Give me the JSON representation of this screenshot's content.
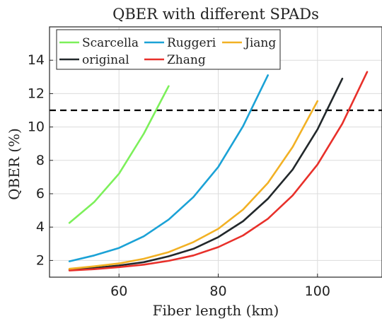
{
  "chart_data": {
    "type": "line",
    "title": "QBER with different SPADs",
    "xlabel": "Fiber length (km)",
    "ylabel": "QBER (%)",
    "xlim": [
      46,
      113
    ],
    "ylim": [
      1,
      16
    ],
    "xticks": [
      60,
      80,
      100
    ],
    "yticks": [
      2,
      4,
      6,
      8,
      10,
      12,
      14
    ],
    "grid": true,
    "legend_position": "top-left",
    "threshold": {
      "y": 11,
      "style": "dashed",
      "color": "#000000"
    },
    "series": [
      {
        "name": "Scarcella",
        "color": "#7cf05a",
        "x": [
          50,
          55,
          60,
          65,
          70
        ],
        "y": [
          4.25,
          5.5,
          7.2,
          9.6,
          12.45
        ]
      },
      {
        "name": "original",
        "color": "#22282b",
        "x": [
          50,
          55,
          60,
          65,
          70,
          75,
          80,
          85,
          90,
          95,
          100,
          105
        ],
        "y": [
          1.45,
          1.55,
          1.7,
          1.9,
          2.25,
          2.7,
          3.4,
          4.35,
          5.7,
          7.45,
          9.85,
          12.9
        ]
      },
      {
        "name": "Ruggeri",
        "color": "#1ba2d6",
        "x": [
          50,
          55,
          60,
          65,
          70,
          75,
          80,
          85,
          90
        ],
        "y": [
          1.95,
          2.3,
          2.75,
          3.45,
          4.45,
          5.8,
          7.6,
          10.05,
          13.1
        ]
      },
      {
        "name": "Zhang",
        "color": "#e8302a",
        "x": [
          50,
          55,
          60,
          65,
          70,
          75,
          80,
          85,
          90,
          95,
          100,
          105,
          110
        ],
        "y": [
          1.4,
          1.48,
          1.6,
          1.75,
          1.98,
          2.3,
          2.8,
          3.5,
          4.5,
          5.9,
          7.75,
          10.2,
          13.3
        ]
      },
      {
        "name": "Jiang",
        "color": "#f2b124",
        "x": [
          50,
          55,
          60,
          65,
          70,
          75,
          80,
          85,
          90,
          95,
          100
        ],
        "y": [
          1.5,
          1.65,
          1.82,
          2.1,
          2.5,
          3.1,
          3.9,
          5.05,
          6.65,
          8.8,
          11.55
        ]
      }
    ]
  }
}
